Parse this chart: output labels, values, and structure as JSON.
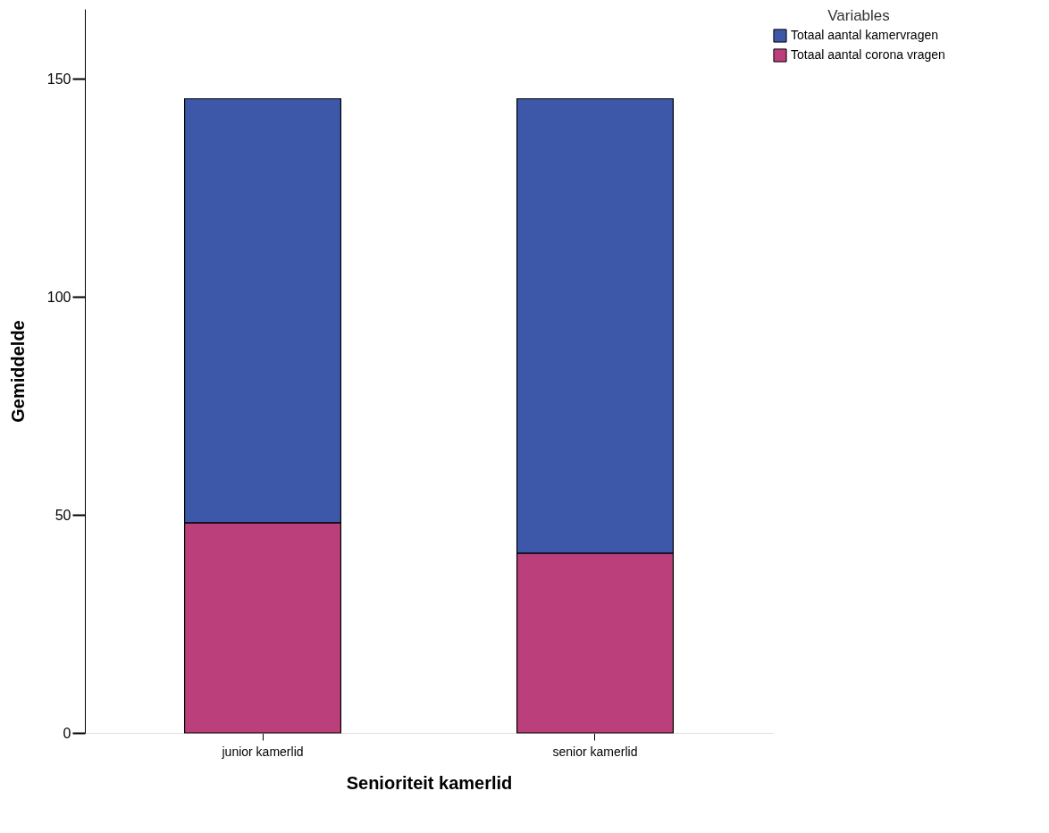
{
  "chart_data": {
    "type": "bar",
    "stacked": true,
    "xlabel": "Senioriteit kamerlid",
    "ylabel": "Gemiddelde",
    "legend_title": "Variables",
    "categories": [
      "junior kamerlid",
      "senior kamerlid"
    ],
    "series": [
      {
        "name": "Totaal aantal corona vragen",
        "color": "#bb3f7b",
        "values": [
          48.2,
          41.2
        ]
      },
      {
        "name": "Totaal aantal kamervragen",
        "color": "#3d58a9",
        "values": [
          97.2,
          104.2
        ]
      }
    ],
    "ylim": [
      0,
      166
    ],
    "yticks": [
      0,
      50,
      100,
      150
    ],
    "grid": false,
    "legend": "top right"
  }
}
